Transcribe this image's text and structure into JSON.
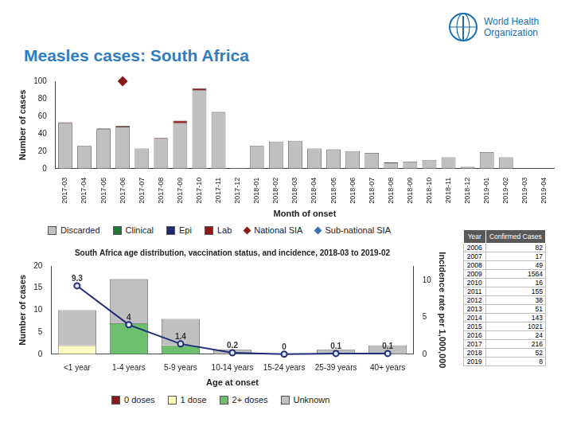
{
  "title": "Measles cases: South Africa",
  "logo_text": [
    "World Health",
    "Organization"
  ],
  "chart_data": [
    {
      "type": "bar",
      "stacked": true,
      "grid": false,
      "legend": "bottom",
      "categories": [
        "2017-03",
        "2017-04",
        "2017-05",
        "2017-06",
        "2017-07",
        "2017-08",
        "2017-09",
        "2017-10",
        "2017-11",
        "2017-12",
        "2018-01",
        "2018-02",
        "2018-03",
        "2018-04",
        "2018-05",
        "2018-06",
        "2018-07",
        "2018-08",
        "2018-09",
        "2018-10",
        "2018-11",
        "2018-12",
        "2019-01",
        "2019-02",
        "2019-03",
        "2019-04"
      ],
      "x_label": "Month of onset",
      "y_label": "Number of cases",
      "ylim": [
        0,
        100
      ],
      "yticks": [
        0,
        20,
        40,
        60,
        80,
        100
      ],
      "series": [
        {
          "name": "Discarded",
          "color": "#c0c0c0",
          "values": [
            52,
            26,
            45,
            48,
            23,
            34,
            52,
            90,
            64,
            1,
            26,
            31,
            32,
            23,
            22,
            20,
            18,
            7,
            8,
            10,
            13,
            2,
            19,
            13,
            0,
            0
          ]
        },
        {
          "name": "Clinical",
          "color": "#1e7b34",
          "values": [
            0,
            0,
            0,
            0,
            0,
            0,
            0,
            0,
            0,
            0,
            0,
            0,
            0,
            0,
            0,
            0,
            0,
            0,
            0,
            0,
            0,
            0,
            0,
            0,
            0,
            0
          ]
        },
        {
          "name": "Epi",
          "color": "#1f2a6e",
          "values": [
            0,
            0,
            0,
            0,
            0,
            0,
            0,
            0,
            0,
            0,
            0,
            0,
            0,
            0,
            0,
            0,
            0,
            0,
            0,
            0,
            0,
            0,
            0,
            0,
            0,
            0
          ]
        },
        {
          "name": "Lab",
          "color": "#8b1a1a",
          "values": [
            1,
            0,
            1,
            1,
            0,
            1,
            3,
            2,
            1,
            0,
            0,
            0,
            0,
            0,
            0,
            0,
            0,
            0,
            0,
            0,
            0,
            0,
            0,
            0,
            0,
            0
          ]
        },
        {
          "name": "National SIA",
          "type": "scatter",
          "marker": "diamond",
          "color": "#8b1a1a",
          "values": [
            null,
            null,
            null,
            100,
            null,
            null,
            null,
            null,
            null,
            null,
            null,
            null,
            null,
            null,
            null,
            null,
            null,
            null,
            null,
            null,
            null,
            null,
            null,
            null,
            null,
            null
          ]
        },
        {
          "name": "Sub-national SIA",
          "type": "scatter",
          "marker": "diamond",
          "color": "#3b6fb6",
          "values": [
            null,
            null,
            null,
            null,
            null,
            null,
            null,
            null,
            null,
            null,
            null,
            null,
            null,
            null,
            null,
            null,
            null,
            null,
            null,
            null,
            null,
            null,
            null,
            null,
            null,
            null
          ]
        }
      ]
    },
    {
      "type": "bar",
      "stacked": true,
      "grid": false,
      "legend": "bottom",
      "title": "South Africa age distribution, vaccination status, and incidence, 2018-03 to 2019-02",
      "categories": [
        "<1 year",
        "1-4 years",
        "5-9 years",
        "10-14 years",
        "15-24 years",
        "25-39 years",
        "40+ years"
      ],
      "x_label": "Age at onset",
      "y_label": "Number of cases",
      "y2_label": "Incidence rate per 1,000,000",
      "ylim": [
        0,
        20
      ],
      "yticks": [
        0,
        5,
        10,
        15,
        20
      ],
      "y2lim": [
        0,
        12
      ],
      "y2ticks": [
        0,
        5,
        10
      ],
      "series": [
        {
          "name": "0 doses",
          "color": "#8b1a1a",
          "values": [
            0,
            0,
            0,
            0,
            0,
            0,
            0
          ]
        },
        {
          "name": "1 dose",
          "color": "#ffffc0",
          "values": [
            2,
            0,
            0,
            0,
            0,
            0,
            0
          ]
        },
        {
          "name": "2+ doses",
          "color": "#6cbf6c",
          "values": [
            0,
            7,
            2,
            0,
            0,
            0,
            0
          ]
        },
        {
          "name": "Unknown",
          "color": "#c0c0c0",
          "values": [
            8,
            10,
            6,
            1,
            0,
            1,
            2
          ]
        },
        {
          "type": "line",
          "marker": "circle",
          "color": "#1f2d7a",
          "axis": "y2",
          "data_labels": true,
          "values": [
            9.3,
            4,
            1.4,
            0.2,
            0,
            0.1,
            0.1
          ]
        }
      ]
    }
  ],
  "table": {
    "header": [
      "Year",
      "Confirmed Cases"
    ],
    "rows": [
      [
        2006,
        82
      ],
      [
        2007,
        17
      ],
      [
        2008,
        49
      ],
      [
        2009,
        1564
      ],
      [
        2010,
        16
      ],
      [
        2011,
        155
      ],
      [
        2012,
        38
      ],
      [
        2013,
        51
      ],
      [
        2014,
        143
      ],
      [
        2015,
        1021
      ],
      [
        2016,
        24
      ],
      [
        2017,
        216
      ],
      [
        2018,
        52
      ],
      [
        2019,
        8
      ]
    ]
  }
}
